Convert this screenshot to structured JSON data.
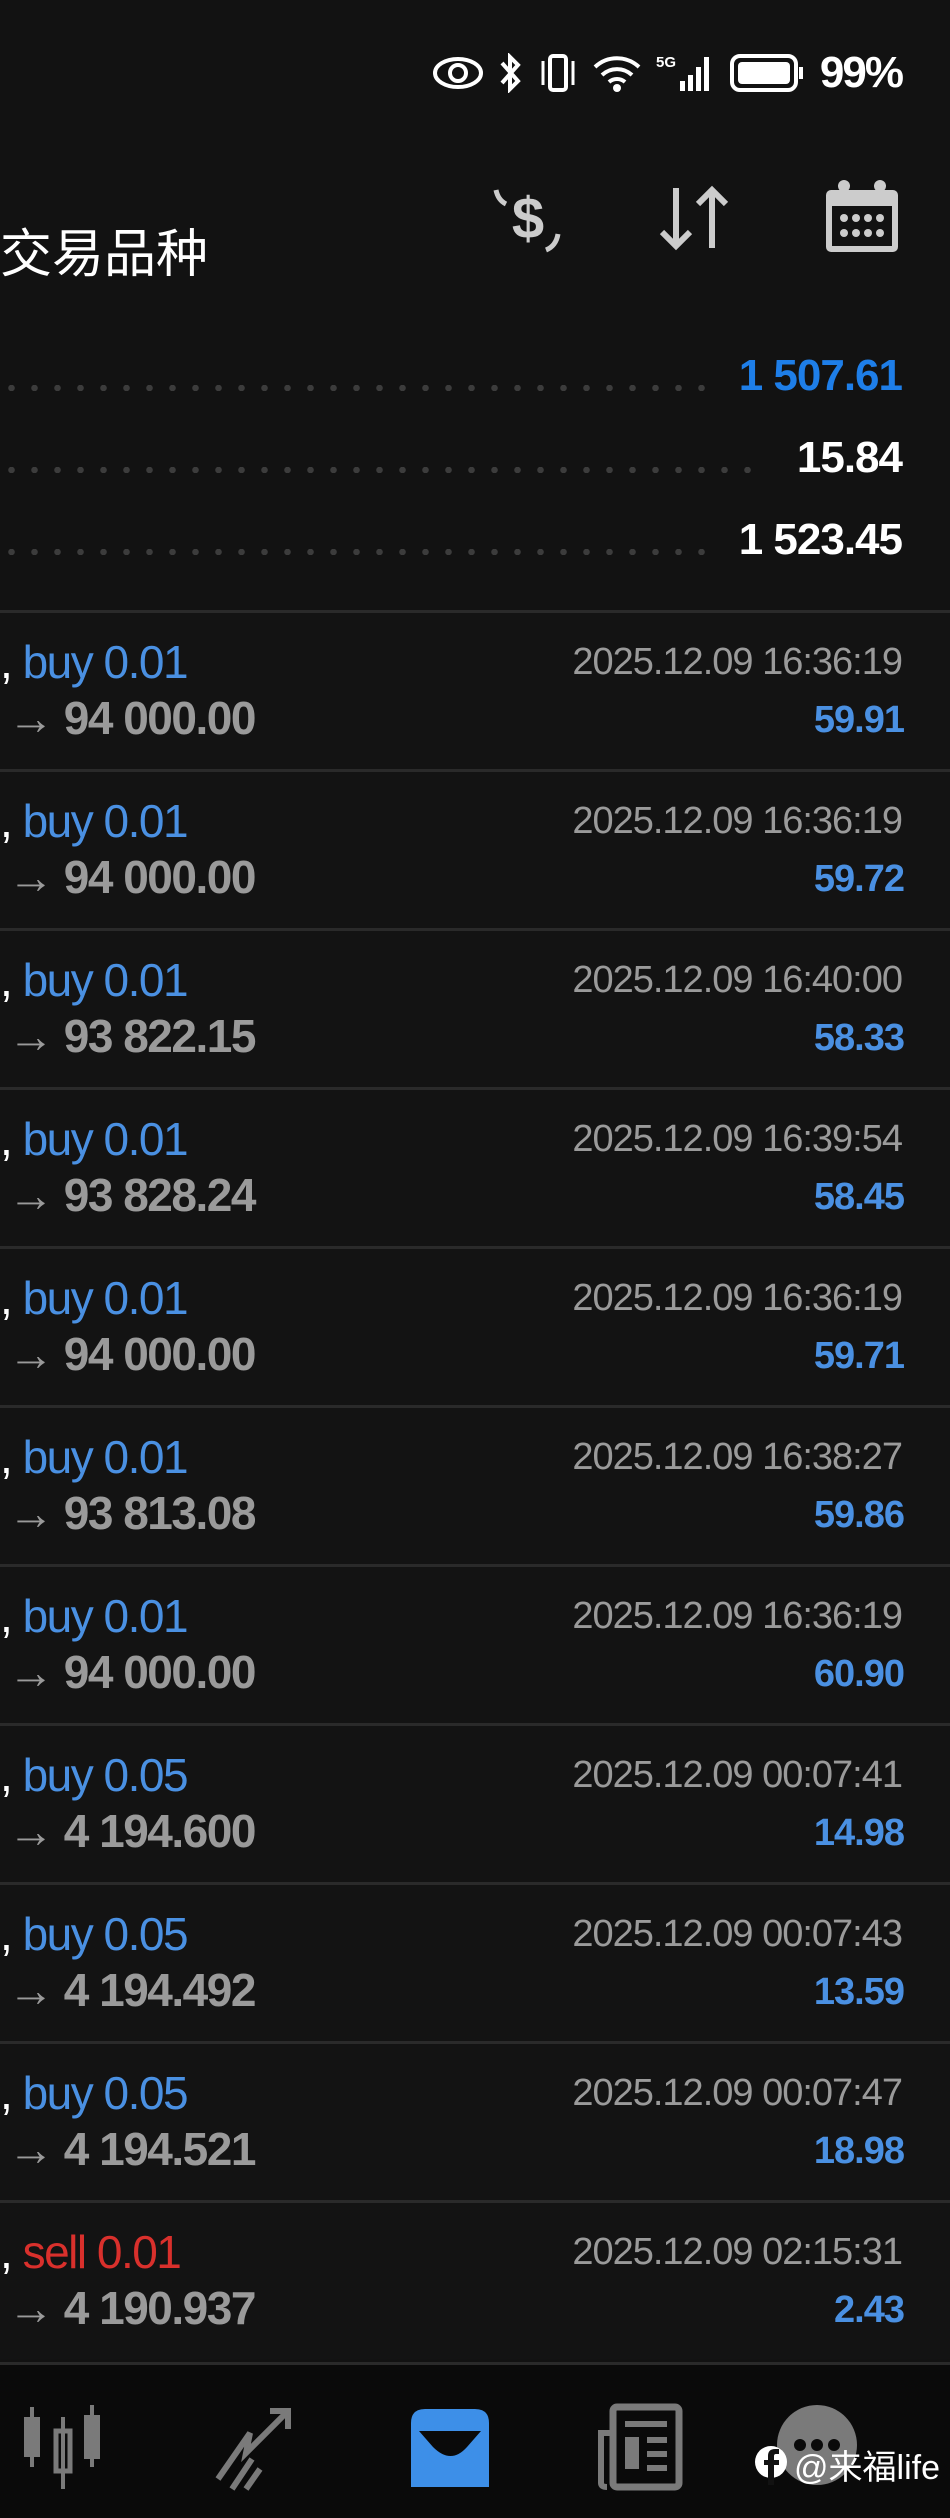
{
  "status_bar": {
    "battery": "99%",
    "network": "5G",
    "icons": [
      "eye-icon",
      "bluetooth-icon",
      "vibrate-icon",
      "wifi-icon",
      "signal-icon",
      "battery-icon"
    ]
  },
  "header": {
    "title": "交易品种",
    "icons": [
      "currency-exchange-icon",
      "sort-icon",
      "calendar-icon"
    ]
  },
  "summary": [
    {
      "value": "1 507.61",
      "color": "#1e7ee8"
    },
    {
      "value": "15.84",
      "color": "#ffffff"
    },
    {
      "value": "1 523.45",
      "color": "#ffffff"
    }
  ],
  "trades": [
    {
      "side": "buy 0.01",
      "price": "→ 94 000.00",
      "time": "2025.12.09 16:36:19",
      "profit": "59.91"
    },
    {
      "side": "buy 0.01",
      "price": "→ 94 000.00",
      "time": "2025.12.09 16:36:19",
      "profit": "59.72"
    },
    {
      "side": "buy 0.01",
      "price": "→ 93 822.15",
      "time": "2025.12.09 16:40:00",
      "profit": "58.33"
    },
    {
      "side": "buy 0.01",
      "price": "→ 93 828.24",
      "time": "2025.12.09 16:39:54",
      "profit": "58.45"
    },
    {
      "side": "buy 0.01",
      "price": "→ 94 000.00",
      "time": "2025.12.09 16:36:19",
      "profit": "59.71"
    },
    {
      "side": "buy 0.01",
      "price": "→ 93 813.08",
      "time": "2025.12.09 16:38:27",
      "profit": "59.86"
    },
    {
      "side": "buy 0.01",
      "price": "→ 94 000.00",
      "time": "2025.12.09 16:36:19",
      "profit": "60.90"
    },
    {
      "side": "buy 0.05",
      "price": "→ 4 194.600",
      "time": "2025.12.09 00:07:41",
      "profit": "14.98"
    },
    {
      "side": "buy 0.05",
      "price": "→ 4 194.492",
      "time": "2025.12.09 00:07:43",
      "profit": "13.59"
    },
    {
      "side": "buy 0.05",
      "price": "→ 4 194.521",
      "time": "2025.12.09 00:07:47",
      "profit": "18.98"
    },
    {
      "side": "sell 0.01",
      "price": "→ 4 190.937",
      "time": "2025.12.09 02:15:31",
      "profit": "2.43"
    }
  ],
  "colors": {
    "buy": "#4a90e2",
    "sell": "#d9302c",
    "active_nav": "#3d8fe8",
    "inactive_nav": "#7a7a7a"
  },
  "bottom_nav": [
    {
      "icon": "quotes-candlestick-icon"
    },
    {
      "icon": "trade-chart-icon"
    },
    {
      "icon": "history-inbox-icon",
      "active": true
    },
    {
      "icon": "news-icon"
    },
    {
      "icon": "messages-icon"
    }
  ],
  "watermark": "@来福life"
}
